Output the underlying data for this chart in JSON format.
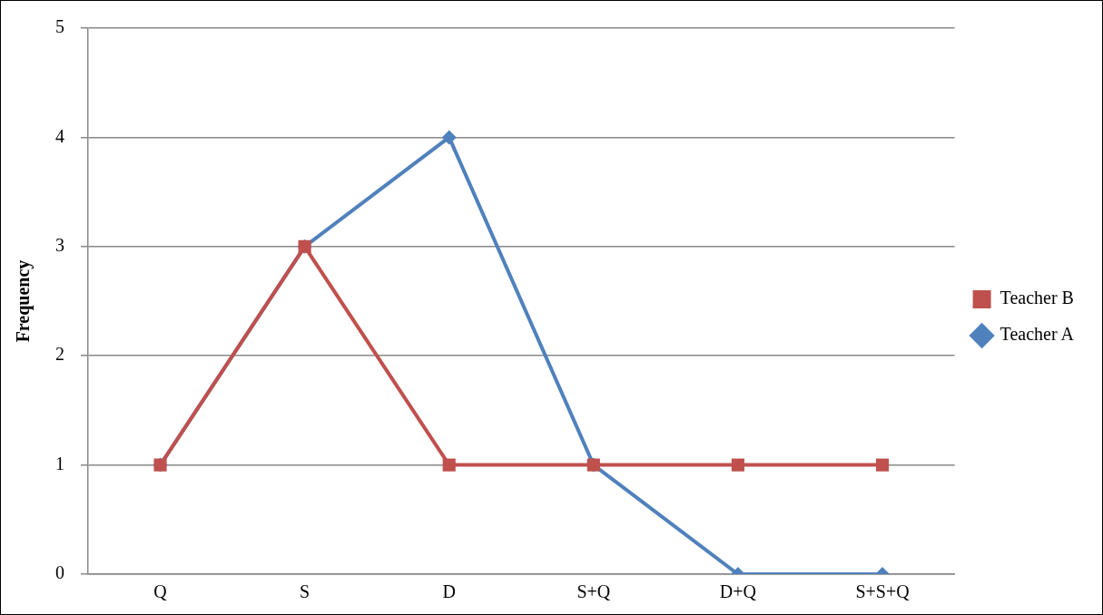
{
  "chart_data": {
    "type": "line",
    "ylabel": "Frequency",
    "categories": [
      "Q",
      "S",
      "D",
      "S+Q",
      "D+Q",
      "S+S+Q"
    ],
    "series": [
      {
        "name": "Teacher A",
        "color": "#4f81bd",
        "marker": "diamond",
        "values": [
          1,
          3,
          4,
          1,
          0,
          0
        ]
      },
      {
        "name": "Teacher B",
        "color": "#c0504d",
        "marker": "square",
        "values": [
          1,
          3,
          1,
          1,
          1,
          1
        ]
      }
    ],
    "ylim": [
      0,
      5
    ],
    "yticks": [
      0,
      1,
      2,
      3,
      4,
      5
    ],
    "grid": "y",
    "legend": "right",
    "line_style": "solid"
  }
}
